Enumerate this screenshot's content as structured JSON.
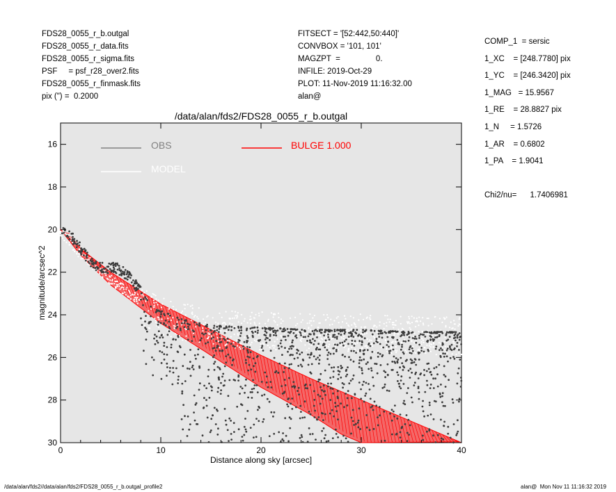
{
  "header_left": [
    "FDS28_0055_r_b.outgal",
    "FDS28_0055_r_data.fits",
    "FDS28_0055_r_sigma.fits",
    "PSF     = psf_r28_over2.fits",
    "FDS28_0055_r_finmask.fits",
    "pix (\") =  0.2000"
  ],
  "header_mid": [
    "FITSECT = '[52:442,50:440]'",
    "CONVBOX = '101, 101'",
    "MAGZPT  =                0.",
    "INFILE: 2019-Oct-29",
    "PLOT: 11-Nov-2019 11:16:32.00",
    "alan@"
  ],
  "header_right": [
    "COMP_1  = sersic",
    "1_XC    = [248.7780] pix",
    "1_YC    = [246.3420] pix",
    "1_MAG   = 15.9567",
    "1_RE    = 28.8827 pix",
    "1_N     = 1.5726",
    "1_AR    = 0.6802",
    "1_PA    = 1.9041"
  ],
  "chi2": "Chi2/nu=      1.7406981",
  "footer_left": "/data/alan/fds2//data/alan/fds2/FDS28_0055_r_b.outgal_profile2",
  "footer_right": "alan@  Mon Nov 11 11:16:32 2019",
  "colors": {
    "plot_bg": "#e6e6e6",
    "obs": "#3c3c3c",
    "model": "#ffffff",
    "bulge": "#ff0000"
  },
  "chart_data": {
    "type": "scatter",
    "title": "/data/alan/fds2/FDS28_0055_r_b.outgal",
    "xlabel": "Distance along sky [arcsec]",
    "ylabel": "magnitude/arcsec^2",
    "xlim": [
      0,
      40
    ],
    "ylim": [
      30,
      15
    ],
    "y_inverted": true,
    "grid": false,
    "legend_placement": "top-left",
    "x_ticks": [
      "0",
      "10",
      "20",
      "30",
      "40"
    ],
    "y_ticks": [
      "16",
      "18",
      "20",
      "22",
      "24",
      "26",
      "28",
      "30"
    ],
    "legend": [
      {
        "label": "OBS",
        "color": "#808080"
      },
      {
        "label": "MODEL",
        "color": "#ffffff"
      },
      {
        "label": "BULGE  1.000",
        "color": "#ff0000"
      }
    ],
    "series": [
      {
        "name": "OBS",
        "color": "#3c3c3c",
        "points": [
          [
            0.2,
            20.0
          ],
          [
            0.5,
            20.1
          ],
          [
            1.0,
            20.3
          ],
          [
            1.5,
            20.6
          ],
          [
            2.0,
            20.9
          ],
          [
            2.5,
            21.2
          ],
          [
            3.0,
            21.5
          ],
          [
            3.5,
            21.7
          ],
          [
            4.0,
            21.8
          ],
          [
            4.5,
            21.8
          ],
          [
            5.0,
            21.8
          ],
          [
            5.5,
            21.8
          ],
          [
            6.0,
            21.9
          ],
          [
            6.5,
            22.1
          ],
          [
            7.0,
            22.3
          ],
          [
            8.0,
            22.9
          ],
          [
            9.0,
            23.5
          ],
          [
            10.0,
            23.8
          ],
          [
            12.0,
            24.2
          ],
          [
            15.0,
            24.5
          ],
          [
            20.0,
            24.6
          ],
          [
            25.0,
            24.7
          ],
          [
            30.0,
            24.7
          ],
          [
            35.0,
            24.8
          ],
          [
            40.0,
            24.8
          ]
        ]
      },
      {
        "name": "MODEL",
        "color": "#ffffff",
        "points": [
          [
            0,
            20.0
          ],
          [
            2,
            21.1
          ],
          [
            5,
            22.3
          ],
          [
            8,
            23.3
          ],
          [
            10,
            23.8
          ],
          [
            15,
            24.4
          ],
          [
            20,
            24.5
          ],
          [
            25,
            24.6
          ],
          [
            30,
            24.6
          ],
          [
            35,
            24.7
          ],
          [
            40,
            24.7
          ]
        ]
      },
      {
        "name": "BULGE  1.000",
        "color": "#ff0000",
        "band_upper": [
          [
            0,
            20.0
          ],
          [
            2,
            20.9
          ],
          [
            5,
            22.0
          ],
          [
            10,
            23.5
          ],
          [
            15,
            24.7
          ],
          [
            20,
            25.9
          ],
          [
            25,
            27.0
          ],
          [
            30,
            28.0
          ],
          [
            35,
            29.0
          ],
          [
            40,
            30.0
          ]
        ],
        "band_lower": [
          [
            0,
            20.0
          ],
          [
            2,
            21.2
          ],
          [
            5,
            22.6
          ],
          [
            10,
            24.4
          ],
          [
            15,
            25.9
          ],
          [
            20,
            27.4
          ],
          [
            25,
            28.7
          ],
          [
            28,
            29.6
          ],
          [
            30,
            30.0
          ]
        ]
      }
    ]
  }
}
